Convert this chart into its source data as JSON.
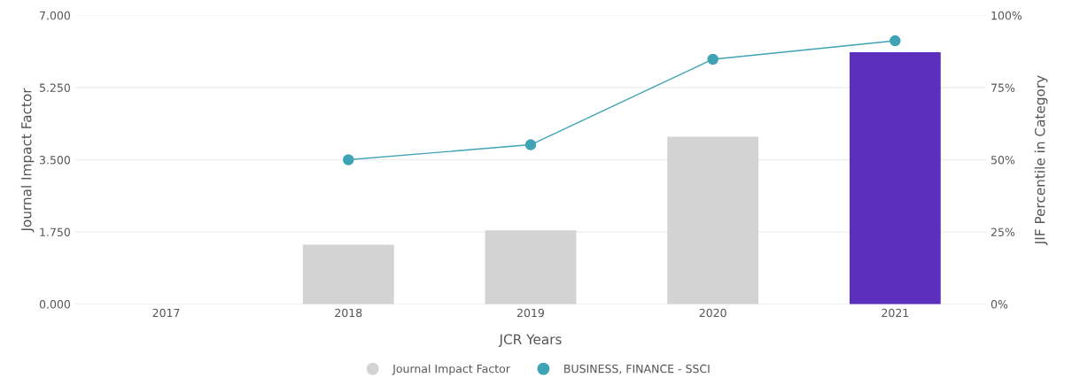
{
  "chart_data": {
    "type": "bar",
    "xlabel": "JCR Years",
    "ylabel": "Journal Impact Factor",
    "y2label": "JIF Percentile in Category",
    "categories": [
      "2017",
      "2018",
      "2019",
      "2020",
      "2021"
    ],
    "series": [
      {
        "name": "Journal Impact Factor",
        "color": "#d3d3d3",
        "colors": [
          "#d3d3d3",
          "#d3d3d3",
          "#d3d3d3",
          "#d3d3d3",
          "#5c2fbf"
        ],
        "values": [
          null,
          1.44,
          1.79,
          4.06,
          6.11
        ]
      },
      {
        "name": "BUSINESS, FINANCE - SSCI",
        "type": "line",
        "axis": "y2",
        "color": "#3fa3b5",
        "values": [
          null,
          50,
          55.2,
          84.8,
          91.2
        ]
      }
    ],
    "ylim": [
      0,
      7
    ],
    "yticks": [
      {
        "value": 0,
        "label": "0.000"
      },
      {
        "value": 1.75,
        "label": "1.750"
      },
      {
        "value": 3.5,
        "label": "3.500"
      },
      {
        "value": 5.25,
        "label": "5.250"
      },
      {
        "value": 7,
        "label": "7.000"
      }
    ],
    "y2lim": [
      0,
      100
    ],
    "y2ticks": [
      {
        "value": 0,
        "label": "0%"
      },
      {
        "value": 25,
        "label": "25%"
      },
      {
        "value": 50,
        "label": "50%"
      },
      {
        "value": 75,
        "label": "75%"
      },
      {
        "value": 100,
        "label": "100%"
      }
    ],
    "grid": "y",
    "legend": "bottom",
    "marker": "circle"
  }
}
